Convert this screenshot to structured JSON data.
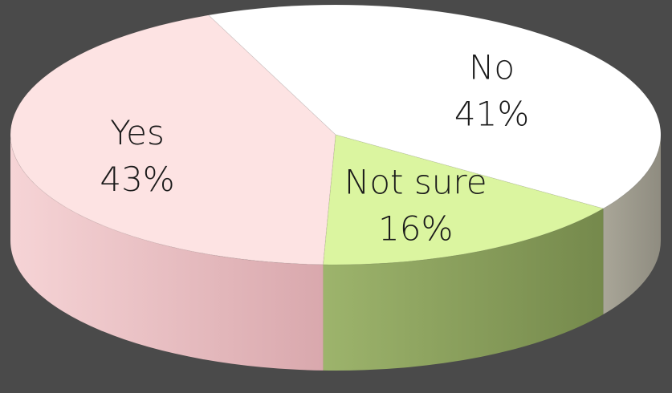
{
  "chart_data": {
    "type": "pie",
    "style": "3d",
    "title": "",
    "slices": [
      {
        "label": "Yes",
        "value": 43,
        "display": "43%",
        "color": "#fde3e3",
        "side_color": "#e3b3b6"
      },
      {
        "label": "No",
        "value": 41,
        "display": "41%",
        "color": "#ffffff",
        "side_color": "#b5b2a6"
      },
      {
        "label": "Not sure",
        "value": 16,
        "display": "16%",
        "color": "#dbf5a0",
        "side_color": "#8ba15f"
      }
    ],
    "background": "#4a4a4a",
    "legend": "none",
    "data_labels": "inside"
  }
}
